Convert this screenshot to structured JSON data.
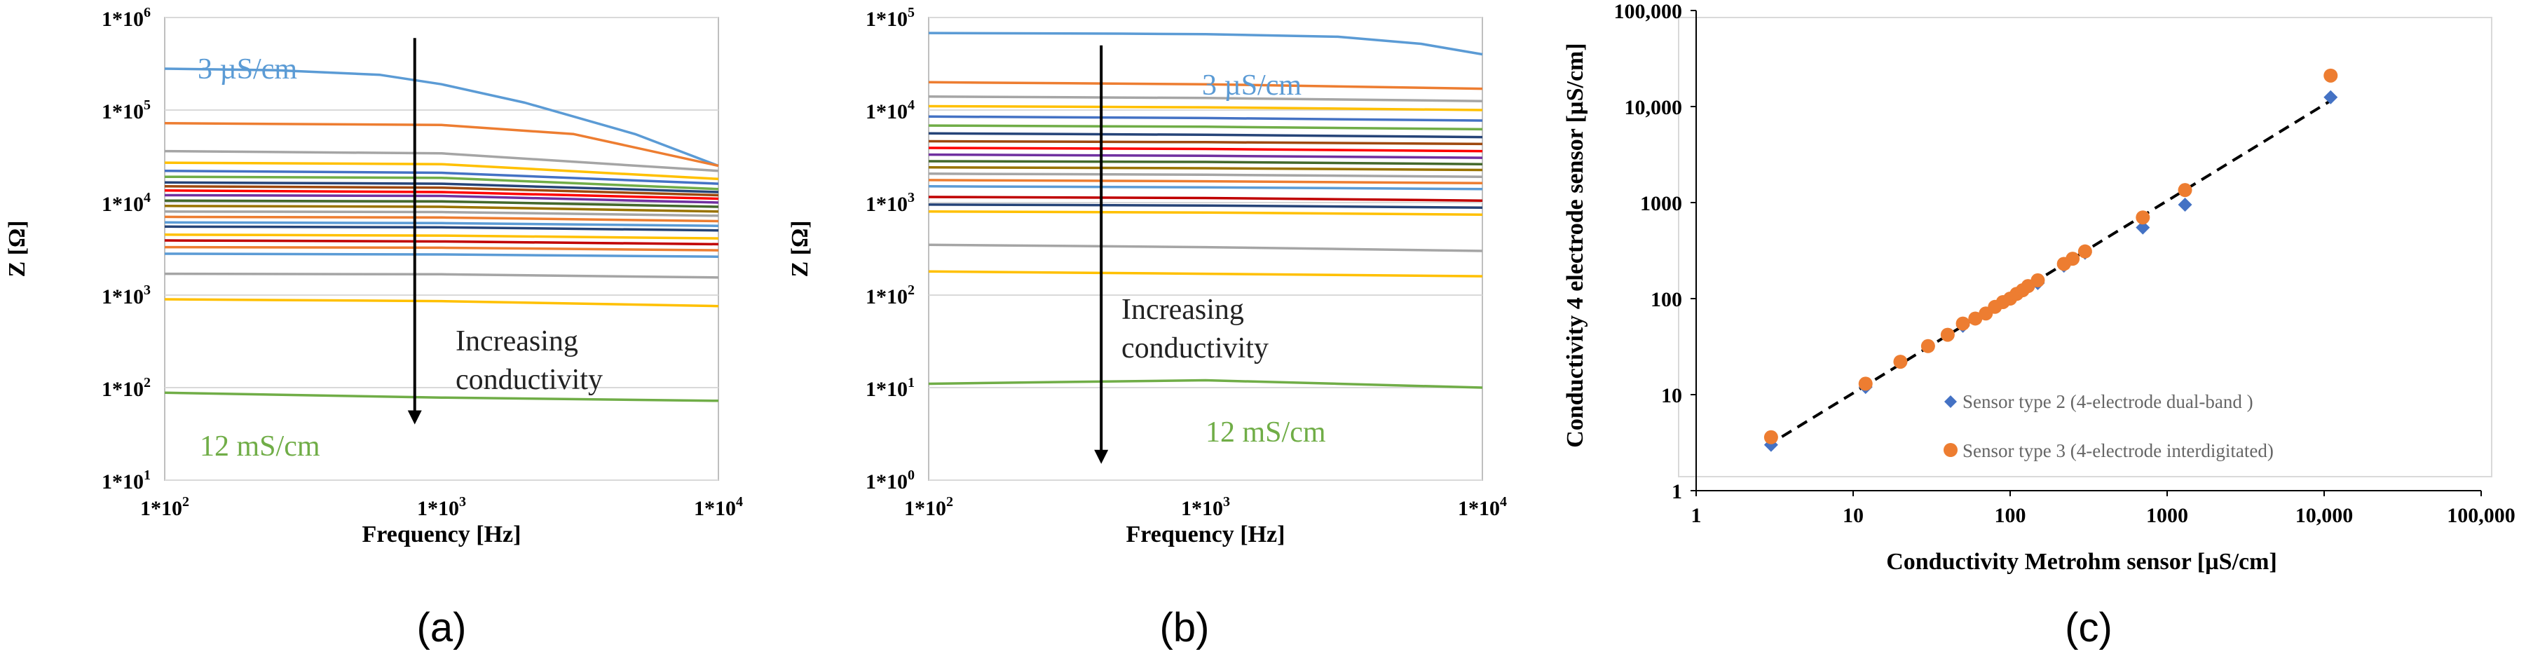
{
  "chart_data": [
    {
      "type": "line",
      "id": "a",
      "panel_label": "(a)",
      "xlabel": "Frequency [Hz]",
      "ylabel": "Z [Ω]",
      "xscale": "log",
      "yscale": "log",
      "xlim": [
        100,
        10000
      ],
      "ylim": [
        10,
        1000000
      ],
      "xticks": [
        {
          "value": 100,
          "label": "1*10",
          "exp": "2"
        },
        {
          "value": 1000,
          "label": "1*10",
          "exp": "3"
        },
        {
          "value": 10000,
          "label": "1*10",
          "exp": "4"
        }
      ],
      "yticks": [
        {
          "value": 10,
          "label": "1*10",
          "exp": "1"
        },
        {
          "value": 100,
          "label": "1*10",
          "exp": "2"
        },
        {
          "value": 1000,
          "label": "1*10",
          "exp": "3"
        },
        {
          "value": 10000,
          "label": "1*10",
          "exp": "4"
        },
        {
          "value": 100000,
          "label": "1*10",
          "exp": "5"
        },
        {
          "value": 1000000,
          "label": "1*10",
          "exp": "6"
        }
      ],
      "grid": "horizontal",
      "annotations": {
        "top_label": "3 µS/cm",
        "top_color": "#5b9bd5",
        "bottom_label": "12 mS/cm",
        "bottom_color": "#70ad47",
        "arrow_text": [
          "Increasing",
          "conductivity"
        ],
        "arrow_x": 800,
        "arrow_from": 600000,
        "arrow_to": 40
      },
      "series": [
        {
          "color": "#5b9bd5",
          "x": [
            100,
            250,
            600,
            1000,
            2000,
            5000,
            10000
          ],
          "values": [
            280000,
            270000,
            240000,
            190000,
            120000,
            55000,
            25000
          ]
        },
        {
          "color": "#ed7d31",
          "x": [
            100,
            1000,
            3000,
            10000
          ],
          "values": [
            72000,
            69000,
            55000,
            25000
          ]
        },
        {
          "color": "#a5a5a5",
          "x": [
            100,
            1000,
            10000
          ],
          "values": [
            36000,
            34000,
            22000
          ]
        },
        {
          "color": "#ffc000",
          "x": [
            100,
            1000,
            10000
          ],
          "values": [
            27000,
            26000,
            18000
          ]
        },
        {
          "color": "#4472c4",
          "x": [
            100,
            1000,
            10000
          ],
          "values": [
            22000,
            21000,
            16000
          ]
        },
        {
          "color": "#70ad47",
          "x": [
            100,
            1000,
            10000
          ],
          "values": [
            19000,
            18500,
            14000
          ]
        },
        {
          "color": "#264478",
          "x": [
            100,
            1000,
            10000
          ],
          "values": [
            16500,
            16000,
            13000
          ]
        },
        {
          "color": "#9e480e",
          "x": [
            100,
            1000,
            10000
          ],
          "values": [
            15000,
            14500,
            12000
          ]
        },
        {
          "color": "#ff0000",
          "x": [
            100,
            1000,
            10000
          ],
          "values": [
            13500,
            13000,
            11000
          ]
        },
        {
          "color": "#7030a0",
          "x": [
            100,
            1000,
            10000
          ],
          "values": [
            12000,
            11800,
            10000
          ]
        },
        {
          "color": "#43682b",
          "x": [
            100,
            1000,
            10000
          ],
          "values": [
            10500,
            10300,
            9000
          ]
        },
        {
          "color": "#997300",
          "x": [
            100,
            1000,
            10000
          ],
          "values": [
            9200,
            9000,
            8000
          ]
        },
        {
          "color": "#a5a5a5",
          "x": [
            100,
            1000,
            10000
          ],
          "values": [
            8000,
            7900,
            7200
          ]
        },
        {
          "color": "#ed7d31",
          "x": [
            100,
            1000,
            10000
          ],
          "values": [
            7000,
            6900,
            6300
          ]
        },
        {
          "color": "#5b9bd5",
          "x": [
            100,
            1000,
            10000
          ],
          "values": [
            6100,
            6000,
            5600
          ]
        },
        {
          "color": "#264478",
          "x": [
            100,
            1000,
            10000
          ],
          "values": [
            5500,
            5400,
            5000
          ]
        },
        {
          "color": "#ffc000",
          "x": [
            100,
            1000,
            10000
          ],
          "values": [
            4500,
            4400,
            4100
          ]
        },
        {
          "color": "#c00000",
          "x": [
            100,
            1000,
            10000
          ],
          "values": [
            3900,
            3800,
            3550
          ]
        },
        {
          "color": "#ed7d31",
          "x": [
            100,
            1000,
            10000
          ],
          "values": [
            3300,
            3250,
            3050
          ]
        },
        {
          "color": "#5b9bd5",
          "x": [
            100,
            1000,
            10000
          ],
          "values": [
            2800,
            2750,
            2600
          ]
        },
        {
          "color": "#a5a5a5",
          "x": [
            100,
            1000,
            10000
          ],
          "values": [
            1700,
            1680,
            1550
          ]
        },
        {
          "color": "#ffc000",
          "x": [
            100,
            1000,
            10000
          ],
          "values": [
            900,
            860,
            760
          ]
        },
        {
          "color": "#70ad47",
          "x": [
            100,
            1000,
            10000
          ],
          "values": [
            88,
            78,
            72
          ]
        }
      ]
    },
    {
      "type": "line",
      "id": "b",
      "panel_label": "(b)",
      "xlabel": "Frequency [Hz]",
      "ylabel": "Z [Ω]",
      "xscale": "log",
      "yscale": "log",
      "xlim": [
        100,
        10000
      ],
      "ylim": [
        1,
        100000
      ],
      "xticks": [
        {
          "value": 100,
          "label": "1*10",
          "exp": "2"
        },
        {
          "value": 1000,
          "label": "1*10",
          "exp": "3"
        },
        {
          "value": 10000,
          "label": "1*10",
          "exp": "4"
        }
      ],
      "yticks": [
        {
          "value": 1,
          "label": "1*10",
          "exp": "0"
        },
        {
          "value": 10,
          "label": "1*10",
          "exp": "1"
        },
        {
          "value": 100,
          "label": "1*10",
          "exp": "2"
        },
        {
          "value": 1000,
          "label": "1*10",
          "exp": "3"
        },
        {
          "value": 10000,
          "label": "1*10",
          "exp": "4"
        },
        {
          "value": 100000,
          "label": "1*10",
          "exp": "5"
        }
      ],
      "grid": "horizontal",
      "annotations": {
        "top_label": "3 µS/cm",
        "top_color": "#5b9bd5",
        "bottom_label": "12 mS/cm",
        "bottom_color": "#70ad47",
        "arrow_text": [
          "Increasing",
          "conductivity"
        ],
        "arrow_x": 420,
        "arrow_from": 50000,
        "arrow_to": 1.5
      },
      "series": [
        {
          "color": "#5b9bd5",
          "x": [
            100,
            500,
            1000,
            3000,
            6000,
            10000
          ],
          "values": [
            68000,
            67000,
            66000,
            62000,
            52000,
            40000
          ]
        },
        {
          "color": "#ed7d31",
          "x": [
            100,
            1000,
            10000
          ],
          "values": [
            20000,
            19000,
            17000
          ]
        },
        {
          "color": "#a5a5a5",
          "x": [
            100,
            1000,
            10000
          ],
          "values": [
            14000,
            13500,
            12500
          ]
        },
        {
          "color": "#ffc000",
          "x": [
            100,
            1000,
            10000
          ],
          "values": [
            11000,
            10700,
            10000
          ]
        },
        {
          "color": "#4472c4",
          "x": [
            100,
            1000,
            10000
          ],
          "values": [
            8500,
            8200,
            7700
          ]
        },
        {
          "color": "#70ad47",
          "x": [
            100,
            1000,
            10000
          ],
          "values": [
            6800,
            6600,
            6200
          ]
        },
        {
          "color": "#264478",
          "x": [
            100,
            1000,
            10000
          ],
          "values": [
            5600,
            5400,
            5100
          ]
        },
        {
          "color": "#9e480e",
          "x": [
            100,
            1000,
            10000
          ],
          "values": [
            4600,
            4500,
            4300
          ]
        },
        {
          "color": "#ff0000",
          "x": [
            100,
            1000,
            10000
          ],
          "values": [
            3900,
            3800,
            3600
          ]
        },
        {
          "color": "#7030a0",
          "x": [
            100,
            1000,
            10000
          ],
          "values": [
            3300,
            3200,
            3050
          ]
        },
        {
          "color": "#43682b",
          "x": [
            100,
            1000,
            10000
          ],
          "values": [
            2800,
            2750,
            2600
          ]
        },
        {
          "color": "#997300",
          "x": [
            100,
            1000,
            10000
          ],
          "values": [
            2400,
            2350,
            2250
          ]
        },
        {
          "color": "#a5a5a5",
          "x": [
            100,
            1000,
            10000
          ],
          "values": [
            2050,
            2000,
            1900
          ]
        },
        {
          "color": "#ed7d31",
          "x": [
            100,
            1000,
            10000
          ],
          "values": [
            1750,
            1700,
            1620
          ]
        },
        {
          "color": "#5b9bd5",
          "x": [
            100,
            1000,
            10000
          ],
          "values": [
            1500,
            1460,
            1400
          ]
        },
        {
          "color": "#c00000",
          "x": [
            100,
            1000,
            10000
          ],
          "values": [
            1150,
            1120,
            1050
          ]
        },
        {
          "color": "#264478",
          "x": [
            100,
            1000,
            10000
          ],
          "values": [
            950,
            930,
            880
          ]
        },
        {
          "color": "#ffc000",
          "x": [
            100,
            1000,
            10000
          ],
          "values": [
            800,
            780,
            740
          ]
        },
        {
          "color": "#a5a5a5",
          "x": [
            100,
            1000,
            10000
          ],
          "values": [
            350,
            330,
            300
          ]
        },
        {
          "color": "#ffc000",
          "x": [
            100,
            1000,
            10000
          ],
          "values": [
            180,
            170,
            160
          ]
        },
        {
          "color": "#70ad47",
          "x": [
            100,
            300,
            1000,
            3000,
            10000
          ],
          "values": [
            11,
            11.5,
            12,
            11,
            10
          ]
        }
      ]
    },
    {
      "type": "scatter",
      "id": "c",
      "panel_label": "(c)",
      "xlabel": "Conductivity  Metrohm sensor [µS/cm]",
      "ylabel": "Conductivity  4 electrode sensor [µS/cm]",
      "xscale": "log",
      "yscale": "log",
      "xlim": [
        1,
        100000
      ],
      "ylim": [
        1,
        100000
      ],
      "xticks": [
        {
          "value": 1,
          "label": "1"
        },
        {
          "value": 10,
          "label": "10"
        },
        {
          "value": 100,
          "label": "100"
        },
        {
          "value": 1000,
          "label": "1000"
        },
        {
          "value": 10000,
          "label": "10,000"
        },
        {
          "value": 100000,
          "label": "100,000"
        }
      ],
      "yticks": [
        {
          "value": 1,
          "label": "1"
        },
        {
          "value": 10,
          "label": "10"
        },
        {
          "value": 100,
          "label": "100"
        },
        {
          "value": 1000,
          "label": "1000"
        },
        {
          "value": 10000,
          "label": "10,000"
        },
        {
          "value": 100000,
          "label": "100,000"
        }
      ],
      "grid": "none",
      "legend": {
        "position": "bottom-right",
        "entries": [
          "Sensor type 2 (4-electrode dual-band )",
          "Sensor type 3 (4-electrode interdigitated)"
        ]
      },
      "trendline": {
        "x": [
          2.8,
          11000
        ],
        "y": [
          2.9,
          11500
        ],
        "style": "dashed",
        "color": "#000000"
      },
      "series": [
        {
          "name": "Sensor type 2 (4-electrode dual-band )",
          "marker": "diamond",
          "color": "#4472c4",
          "x": [
            3,
            12,
            20,
            30,
            50,
            70,
            100,
            150,
            220,
            300,
            700,
            1300,
            11000
          ],
          "y": [
            3,
            12,
            22,
            32,
            52,
            70,
            100,
            145,
            220,
            300,
            550,
            950,
            12500
          ]
        },
        {
          "name": "Sensor type 3 (4-electrode interdigitated)",
          "marker": "circle",
          "color": "#ed7d31",
          "x": [
            3,
            12,
            20,
            30,
            40,
            50,
            60,
            70,
            80,
            90,
            100,
            110,
            120,
            130,
            150,
            220,
            250,
            300,
            700,
            1300,
            11000
          ],
          "y": [
            3.6,
            13,
            22,
            32,
            42,
            55,
            62,
            70,
            82,
            92,
            100,
            112,
            122,
            135,
            155,
            230,
            260,
            310,
            700,
            1350,
            21000
          ]
        }
      ]
    }
  ]
}
